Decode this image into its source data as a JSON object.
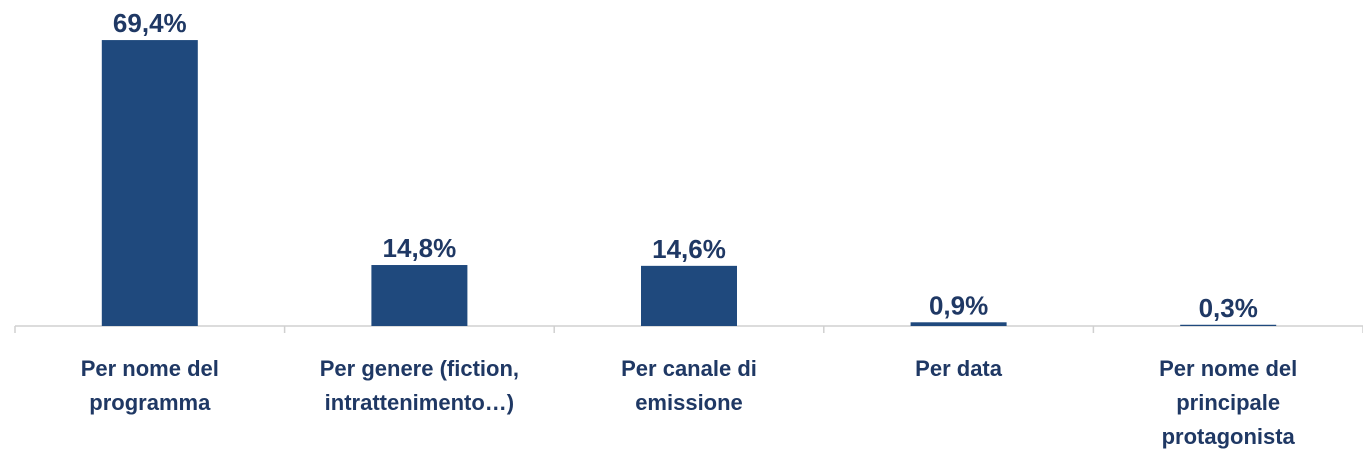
{
  "chart_data": {
    "type": "bar",
    "categories": [
      "Per nome del\nprogramma",
      "Per genere (fiction,\nintrattenimento…)",
      "Per canale di\nemissione",
      "Per data",
      "Per nome del\nprincipale\nprotagonista"
    ],
    "values": [
      69.4,
      14.8,
      14.6,
      0.9,
      0.3
    ],
    "value_labels": [
      "69,4%",
      "14,8%",
      "14,6%",
      "0,9%",
      "0,3%"
    ],
    "color": "#1f497d"
  }
}
